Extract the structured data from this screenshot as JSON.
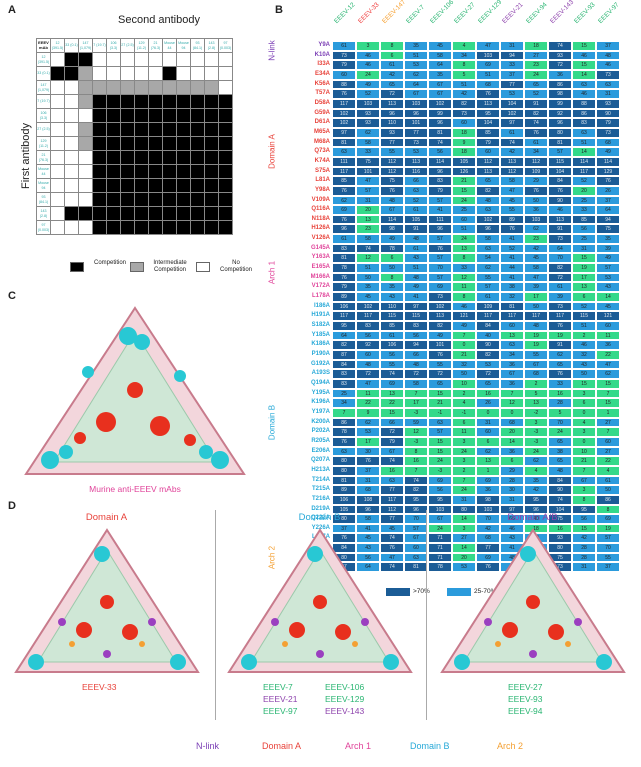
{
  "panel_a": {
    "label": "A",
    "title": "Second antibody",
    "y_label": "First antibody",
    "corner": "EEEV mAb",
    "col_headers": [
      "12",
      "33",
      "147",
      "7",
      "106",
      "27",
      "129",
      "21",
      "Mouse 44",
      "Mouse 94",
      "93",
      "143",
      "97"
    ],
    "col_subs": [
      "(391.5)",
      "(0.1)",
      "(1,079)",
      "(19.7)",
      "(3.3)",
      "(2.5)",
      "(11.2)",
      "(76.3)",
      "",
      "",
      "(84.1)",
      "(2.8)",
      "(0.003)"
    ],
    "row_headers": [
      "12\n(391.5)",
      "33\n(0.1)",
      "147\n(1,079)",
      "7\n(19.7)",
      "106\n(3.3)",
      "27\n(2.5)",
      "129\n(11.2)",
      "21\n(76.3)",
      "Mouse\n44",
      "Mouse\n94",
      "93\n(84.1)",
      "143\n(2.8)",
      "97\n(0.003)"
    ],
    "matrix": [
      "NCCNNNNNNNNNN",
      "CCINNNNNCNNNN",
      "NNIIIIIIIIIIN",
      "NNICCCCCCCCCC",
      "NNNCCCCCCCCCC",
      "NNICCCCCCCCCC",
      "NNICCCCCCCCCC",
      "NNNCCCCCCCCCC",
      "NNNCCCCCCCCCC",
      "NNNCCCCCCCCCC",
      "NNNCCCCCCCCCC",
      "NCCCCCCCCCCCC",
      "NNNCCCCCCCCCC"
    ],
    "legend": [
      {
        "label": "Competition",
        "color": "#000000"
      },
      {
        "label": "Intermediate\nCompetition",
        "color": "#a8a8a8"
      },
      {
        "label": "No\nCompetition",
        "color": "#ffffff"
      }
    ]
  },
  "panel_b": {
    "label": "B",
    "columns": [
      "EEEV-12",
      "EEEV-33",
      "EEEV-147",
      "EEEV-7",
      "EEEV-106",
      "EEEV-27",
      "EEEV-129",
      "EEEV-21",
      "EEEV-94",
      "EEEV-143",
      "EEEV-93",
      "EEEV-97"
    ],
    "column_colors": [
      "#2bb673",
      "#f04040",
      "#f7a030",
      "#2bb673",
      "#2bb673",
      "#2bb673",
      "#2bb673",
      "#8e44ad",
      "#2bb673",
      "#8e44ad",
      "#2bb673",
      "#2bb673"
    ],
    "rows": [
      {
        "m": "Y9A",
        "d": "n",
        "v": [
          61,
          3,
          8,
          35,
          45,
          4,
          47,
          31,
          18,
          74,
          15,
          37
        ]
      },
      {
        "m": "K10A",
        "d": "n",
        "v": [
          73,
          46,
          6,
          51,
          58,
          34,
          103,
          94,
          27,
          93,
          46,
          48
        ]
      },
      {
        "m": "I33A",
        "d": "a",
        "v": [
          79,
          46,
          61,
          53,
          64,
          8,
          69,
          33,
          23,
          72,
          15,
          46
        ]
      },
      {
        "m": "E34A",
        "d": "a",
        "v": [
          60,
          24,
          42,
          62,
          35,
          5,
          51,
          37,
          24,
          36,
          14,
          73
        ]
      },
      {
        "m": "K56A",
        "d": "a",
        "v": [
          88,
          49,
          65,
          64,
          67,
          51,
          68,
          77,
          65,
          86,
          63,
          63
        ]
      },
      {
        "m": "T57A",
        "d": "a",
        "v": [
          76,
          52,
          72,
          67,
          67,
          42,
          76,
          53,
          52,
          98,
          46,
          31
        ]
      },
      {
        "m": "D58A",
        "d": "a",
        "v": [
          117,
          103,
          113,
          103,
          102,
          82,
          113,
          104,
          91,
          99,
          88,
          93
        ]
      },
      {
        "m": "G59A",
        "d": "a",
        "v": [
          102,
          93,
          96,
          96,
          99,
          73,
          95,
          102,
          82,
          92,
          86,
          90
        ]
      },
      {
        "m": "D61A",
        "d": "a",
        "v": [
          102,
          93,
          110,
          101,
          96,
          60,
          104,
          97,
          74,
          96,
          83,
          79
        ]
      },
      {
        "m": "M65A",
        "d": "a",
        "v": [
          97,
          62,
          93,
          77,
          81,
          18,
          85,
          61,
          76,
          80,
          63,
          73
        ]
      },
      {
        "m": "M68A",
        "d": "a",
        "v": [
          81,
          58,
          77,
          73,
          74,
          9,
          79,
          74,
          61,
          81,
          51,
          68
        ]
      },
      {
        "m": "Q73A",
        "d": "a",
        "v": [
          63,
          33,
          55,
          53,
          56,
          18,
          60,
          42,
          34,
          57,
          14,
          49
        ]
      },
      {
        "m": "K74A",
        "d": "a",
        "v": [
          111,
          75,
          112,
          113,
          114,
          105,
          112,
          113,
          112,
          115,
          114,
          114
        ]
      },
      {
        "m": "S75A",
        "d": "a",
        "v": [
          117,
          101,
          112,
          116,
          96,
          126,
          113,
          112,
          109,
          104,
          117,
          129
        ]
      },
      {
        "m": "L81A",
        "d": "a",
        "v": [
          85,
          47,
          75,
          66,
          83,
          21,
          65,
          58,
          29,
          84,
          52,
          76
        ]
      },
      {
        "m": "Y98A",
        "d": "a",
        "v": [
          76,
          57,
          76,
          63,
          79,
          15,
          82,
          47,
          76,
          76,
          20,
          26
        ]
      },
      {
        "m": "V109A",
        "d": "a",
        "v": [
          62,
          31,
          48,
          52,
          57,
          24,
          48,
          45,
          50,
          90,
          25,
          37
        ]
      },
      {
        "m": "Q116A",
        "d": "a",
        "v": [
          69,
          20,
          67,
          61,
          41,
          25,
          63,
          55,
          36,
          46,
          33,
          64
        ]
      },
      {
        "m": "N118A",
        "d": "a",
        "v": [
          76,
          13,
          114,
          105,
          111,
          60,
          102,
          89,
          103,
          113,
          85,
          94
        ]
      },
      {
        "m": "H126A",
        "d": "a",
        "v": [
          96,
          23,
          98,
          91,
          96,
          51,
          96,
          76,
          62,
          91,
          56,
          75
        ]
      },
      {
        "m": "V126A",
        "d": "a",
        "v": [
          61,
          58,
          49,
          48,
          57,
          24,
          58,
          41,
          23,
          73,
          25,
          35
        ]
      },
      {
        "m": "G145A",
        "d": "1",
        "v": [
          83,
          74,
          78,
          61,
          76,
          13,
          63,
          52,
          42,
          64,
          31,
          39
        ]
      },
      {
        "m": "Y163A",
        "d": "1",
        "v": [
          81,
          12,
          6,
          43,
          57,
          8,
          54,
          41,
          45,
          70,
          15,
          49
        ]
      },
      {
        "m": "E165A",
        "d": "1",
        "v": [
          78,
          51,
          50,
          51,
          70,
          33,
          62,
          44,
          58,
          82,
          19,
          57
        ]
      },
      {
        "m": "M166A",
        "d": "1",
        "v": [
          76,
          50,
          8,
          48,
          57,
          12,
          55,
          41,
          47,
          72,
          17,
          53
        ]
      },
      {
        "m": "V172A",
        "d": "1",
        "v": [
          79,
          35,
          35,
          49,
          69,
          11,
          57,
          38,
          39,
          61,
          13,
          43
        ]
      },
      {
        "m": "L178A",
        "d": "1",
        "v": [
          89,
          45,
          43,
          41,
          73,
          8,
          61,
          32,
          17,
          39,
          6,
          14
        ]
      },
      {
        "m": "I186A",
        "d": "b",
        "v": [
          106,
          102,
          110,
          97,
          102,
          46,
          109,
          81,
          50,
          73,
          52,
          45
        ]
      },
      {
        "m": "H191A",
        "d": "b",
        "v": [
          117,
          117,
          115,
          115,
          113,
          121,
          117,
          117,
          117,
          117,
          115,
          121
        ]
      },
      {
        "m": "S182A",
        "d": "b",
        "v": [
          95,
          83,
          85,
          83,
          82,
          49,
          84,
          60,
          48,
          76,
          51,
          60
        ]
      },
      {
        "m": "Y185A",
        "d": "b",
        "v": [
          64,
          56,
          61,
          56,
          49,
          7,
          40,
          13,
          19,
          19,
          2,
          11
        ]
      },
      {
        "m": "K186A",
        "d": "b",
        "v": [
          82,
          92,
          106,
          94,
          101,
          0,
          90,
          63,
          19,
          91,
          46,
          36
        ]
      },
      {
        "m": "P190A",
        "d": "b",
        "v": [
          87,
          60,
          56,
          66,
          76,
          21,
          82,
          34,
          55,
          62,
          32,
          22
        ]
      },
      {
        "m": "G192A",
        "d": "b",
        "v": [
          84,
          48,
          55,
          48,
          55,
          32,
          53,
          36,
          67,
          65,
          43,
          47
        ]
      },
      {
        "m": "A193S",
        "d": "b",
        "v": [
          83,
          72,
          74,
          72,
          72,
          50,
          72,
          67,
          68,
          76,
          50,
          62
        ]
      },
      {
        "m": "Q194A",
        "d": "b",
        "v": [
          83,
          47,
          69,
          58,
          65,
          10,
          65,
          36,
          2,
          33,
          15,
          15
        ]
      },
      {
        "m": "Y195A",
        "d": "b",
        "v": [
          25,
          11,
          13,
          7,
          15,
          2,
          16,
          7,
          5,
          16,
          3,
          7
        ]
      },
      {
        "m": "K196A",
        "d": "b",
        "v": [
          34,
          22,
          22,
          17,
          21,
          4,
          26,
          12,
          13,
          28,
          6,
          15
        ]
      },
      {
        "m": "Y197A",
        "d": "b",
        "v": [
          7,
          9,
          15,
          -3,
          -1,
          -1,
          0,
          0,
          -2,
          5,
          0,
          1
        ]
      },
      {
        "m": "K200A",
        "d": "b",
        "v": [
          86,
          62,
          66,
          59,
          63,
          6,
          31,
          68,
          3,
          70,
          4,
          27
        ]
      },
      {
        "m": "P202A",
        "d": "b",
        "v": [
          78,
          53,
          72,
          12,
          57,
          11,
          60,
          20,
          -3,
          24,
          3,
          7
        ]
      },
      {
        "m": "R205A",
        "d": "b",
        "v": [
          76,
          17,
          79,
          -3,
          15,
          3,
          6,
          14,
          -3,
          65,
          0,
          60
        ]
      },
      {
        "m": "E206A",
        "d": "b",
        "v": [
          63,
          30,
          67,
          8,
          15,
          24,
          62,
          36,
          24,
          38,
          10,
          27
        ]
      },
      {
        "m": "Q207A",
        "d": "b",
        "v": [
          80,
          76,
          74,
          16,
          24,
          3,
          13,
          6,
          62,
          65,
          21,
          22
        ]
      },
      {
        "m": "H213A",
        "d": "b",
        "v": [
          80,
          37,
          16,
          7,
          -3,
          2,
          1,
          29,
          4,
          48,
          7,
          4
        ]
      },
      {
        "m": "T214A",
        "d": "b",
        "v": [
          81,
          31,
          63,
          74,
          69,
          7,
          69,
          28,
          35,
          84,
          67,
          61
        ]
      },
      {
        "m": "T215A",
        "d": "b",
        "v": [
          89,
          68,
          77,
          82,
          56,
          24,
          36,
          30,
          42,
          90,
          3,
          50
        ]
      },
      {
        "m": "T216A",
        "d": "b",
        "v": [
          106,
          108,
          117,
          95,
          95,
          31,
          98,
          31,
          95,
          74,
          8,
          86
        ]
      },
      {
        "m": "D219A",
        "d": "b",
        "v": [
          105,
          96,
          112,
          96,
          103,
          80,
          103,
          97,
          96,
          104,
          95,
          8
        ]
      },
      {
        "m": "Q222A",
        "d": "b",
        "v": [
          80,
          58,
          77,
          70,
          67,
          14,
          70,
          66,
          40,
          75,
          56,
          69
        ]
      },
      {
        "m": "Y226A",
        "d": "b",
        "v": [
          37,
          41,
          45,
          57,
          24,
          3,
          42,
          46,
          18,
          16,
          15,
          19
        ]
      },
      {
        "m": "L227A",
        "d": "b",
        "v": [
          76,
          45,
          74,
          67,
          71,
          27,
          68,
          43,
          50,
          93,
          42,
          57
        ]
      },
      {
        "m": "D229A",
        "d": "2",
        "v": [
          84,
          43,
          76,
          60,
          71,
          14,
          77,
          41,
          38,
          80,
          28,
          70
        ]
      },
      {
        "m": "L240A",
        "d": "2",
        "v": [
          80,
          56,
          47,
          63,
          71,
          20,
          69,
          48,
          55,
          75,
          28,
          55
        ]
      },
      {
        "m": "A242A",
        "d": "2",
        "v": [
          97,
          64,
          74,
          81,
          78,
          53,
          76,
          65,
          32,
          73,
          31,
          37
        ]
      }
    ],
    "domains": [
      {
        "key": "n",
        "label": "N-link",
        "color": "#7b3fb5"
      },
      {
        "key": "a",
        "label": "Domain A",
        "color": "#e8423a"
      },
      {
        "key": "1",
        "label": "Arch 1",
        "color": "#e0449a"
      },
      {
        "key": "b",
        "label": "Domain B",
        "color": "#27a9d8"
      },
      {
        "key": "2",
        "label": "Arch 2",
        "color": "#f4a033"
      }
    ],
    "legend": [
      {
        "label": ">70%",
        "color": "#1b5c96"
      },
      {
        "label": "25-70%",
        "color": "#2b9bdc"
      },
      {
        "label": "<25%",
        "color": "#34d98a"
      }
    ]
  },
  "panel_c": {
    "label": "C",
    "caption": "Murine anti-EEEV mAbs"
  },
  "panel_d": {
    "label": "D",
    "sections": [
      {
        "title": "Domain A",
        "title_color": "#e8423a",
        "mabs": [
          {
            "t": "EEEV-33",
            "c": "#e8423a"
          }
        ]
      },
      {
        "title": "Domain B",
        "title_color": "#27a9d8",
        "mabs": [
          {
            "t": "EEEV-7",
            "c": "#2bb673"
          },
          {
            "t": "EEEV-106",
            "c": "#2bb673"
          },
          {
            "t": "EEEV-21",
            "c": "#8e44ad"
          },
          {
            "t": "EEEV-129",
            "c": "#2bb673"
          },
          {
            "t": "EEEV-97",
            "c": "#2bb673"
          },
          {
            "t": "EEEV-143",
            "c": "#8e44ad"
          }
        ]
      },
      {
        "title": "Domain A/B",
        "title_color": "#8e44ad",
        "mabs": [
          {
            "t": "EEEV-27",
            "c": "#2bb673"
          },
          {
            "t": "EEEV-93",
            "c": "#2bb673"
          },
          {
            "t": "EEEV-94",
            "c": "#2bb673"
          }
        ]
      }
    ]
  },
  "bottom_legend": [
    {
      "label": "N-link",
      "color": "#7b3fb5"
    },
    {
      "label": "Domain A",
      "color": "#e8423a"
    },
    {
      "label": "Arch 1",
      "color": "#e0449a"
    },
    {
      "label": "Domain B",
      "color": "#27a9d8"
    },
    {
      "label": "Arch 2",
      "color": "#f4a033"
    }
  ]
}
